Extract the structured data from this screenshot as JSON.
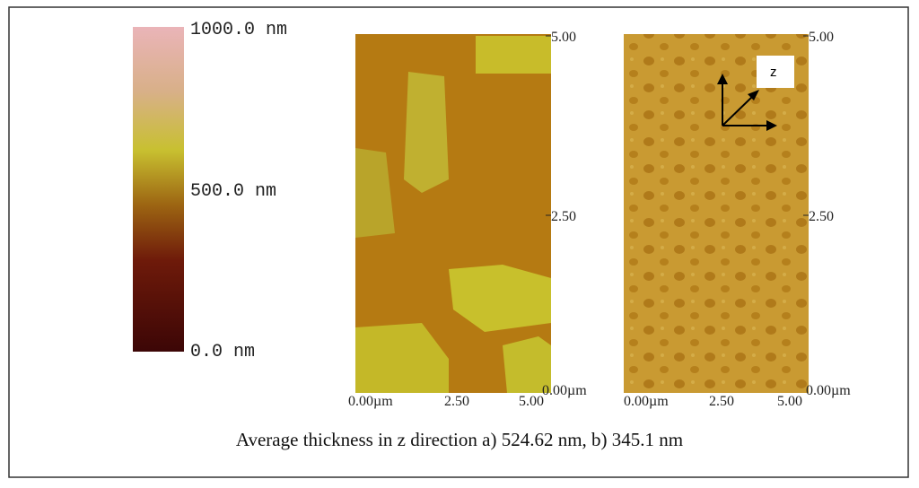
{
  "colorbar": {
    "labels": [
      "1000.0 nm",
      "500.0 nm",
      "0.0 nm"
    ]
  },
  "image_a": {
    "right_ticks": [
      "5.00",
      "2.50",
      "0.00µm"
    ],
    "bottom_ticks": [
      "0.00µm",
      "2.50",
      "5.00"
    ]
  },
  "image_b": {
    "right_ticks": [
      "5.00",
      "2.50",
      "0.00µm"
    ],
    "bottom_ticks": [
      "0.00µm",
      "2.50",
      "5.00"
    ],
    "axis_label": "z"
  },
  "caption": "Average thickness in z direction a) 524.62 nm, b) 345.1 nm"
}
